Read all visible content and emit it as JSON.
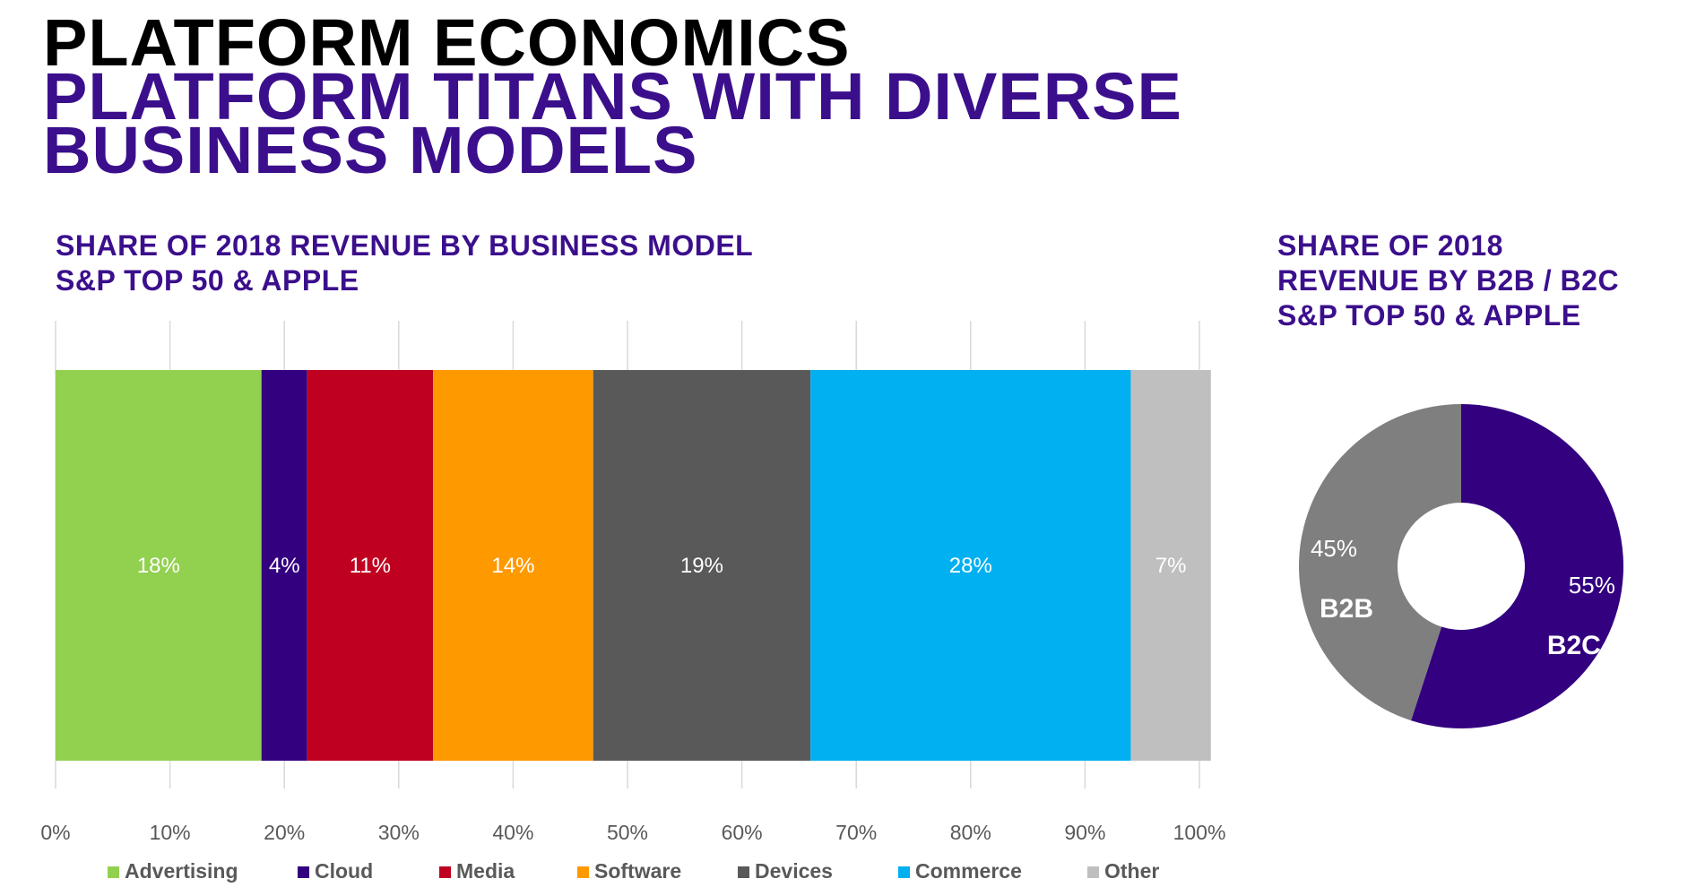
{
  "slide": {
    "title": "PLATFORM ECONOMICS",
    "subtitle_line1": "PLATFORM TITANS WITH DIVERSE",
    "subtitle_line2": "BUSINESS MODELS"
  },
  "colors": {
    "title": "#000000",
    "accent": "#3b0f8c",
    "axis_text": "#595959",
    "gridline": "#d9d9d9"
  },
  "chart_data": [
    {
      "type": "bar",
      "orientation": "horizontal-stacked-100",
      "title_line1": "SHARE OF 2018 REVENUE BY BUSINESS MODEL",
      "title_line2": "S&P TOP 50 & APPLE",
      "xlim": [
        0,
        100
      ],
      "x_ticks": [
        "0%",
        "10%",
        "20%",
        "30%",
        "40%",
        "50%",
        "60%",
        "70%",
        "80%",
        "90%",
        "100%"
      ],
      "grid": true,
      "legend_position": "bottom",
      "series": [
        {
          "name": "Advertising",
          "value": 18,
          "label": "18%",
          "color": "#92d050"
        },
        {
          "name": "Cloud",
          "value": 4,
          "label": "4%",
          "color": "#33007f"
        },
        {
          "name": "Media",
          "value": 11,
          "label": "11%",
          "color": "#c00020"
        },
        {
          "name": "Software",
          "value": 14,
          "label": "14%",
          "color": "#ff9900"
        },
        {
          "name": "Devices",
          "value": 19,
          "label": "19%",
          "color": "#595959"
        },
        {
          "name": "Commerce",
          "value": 28,
          "label": "28%",
          "color": "#00b0f0"
        },
        {
          "name": "Other",
          "value": 7,
          "label": "7%",
          "color": "#bfbfbf"
        }
      ]
    },
    {
      "type": "pie",
      "variant": "donut",
      "title_line1": "SHARE OF 2018",
      "title_line2": "REVENUE BY B2B / B2C",
      "title_line3": "S&P TOP 50 & APPLE",
      "slices": [
        {
          "name": "B2C",
          "value": 55,
          "label": "55%",
          "color": "#33007f"
        },
        {
          "name": "B2B",
          "value": 45,
          "label": "45%",
          "color": "#7f7f7f"
        }
      ]
    }
  ]
}
